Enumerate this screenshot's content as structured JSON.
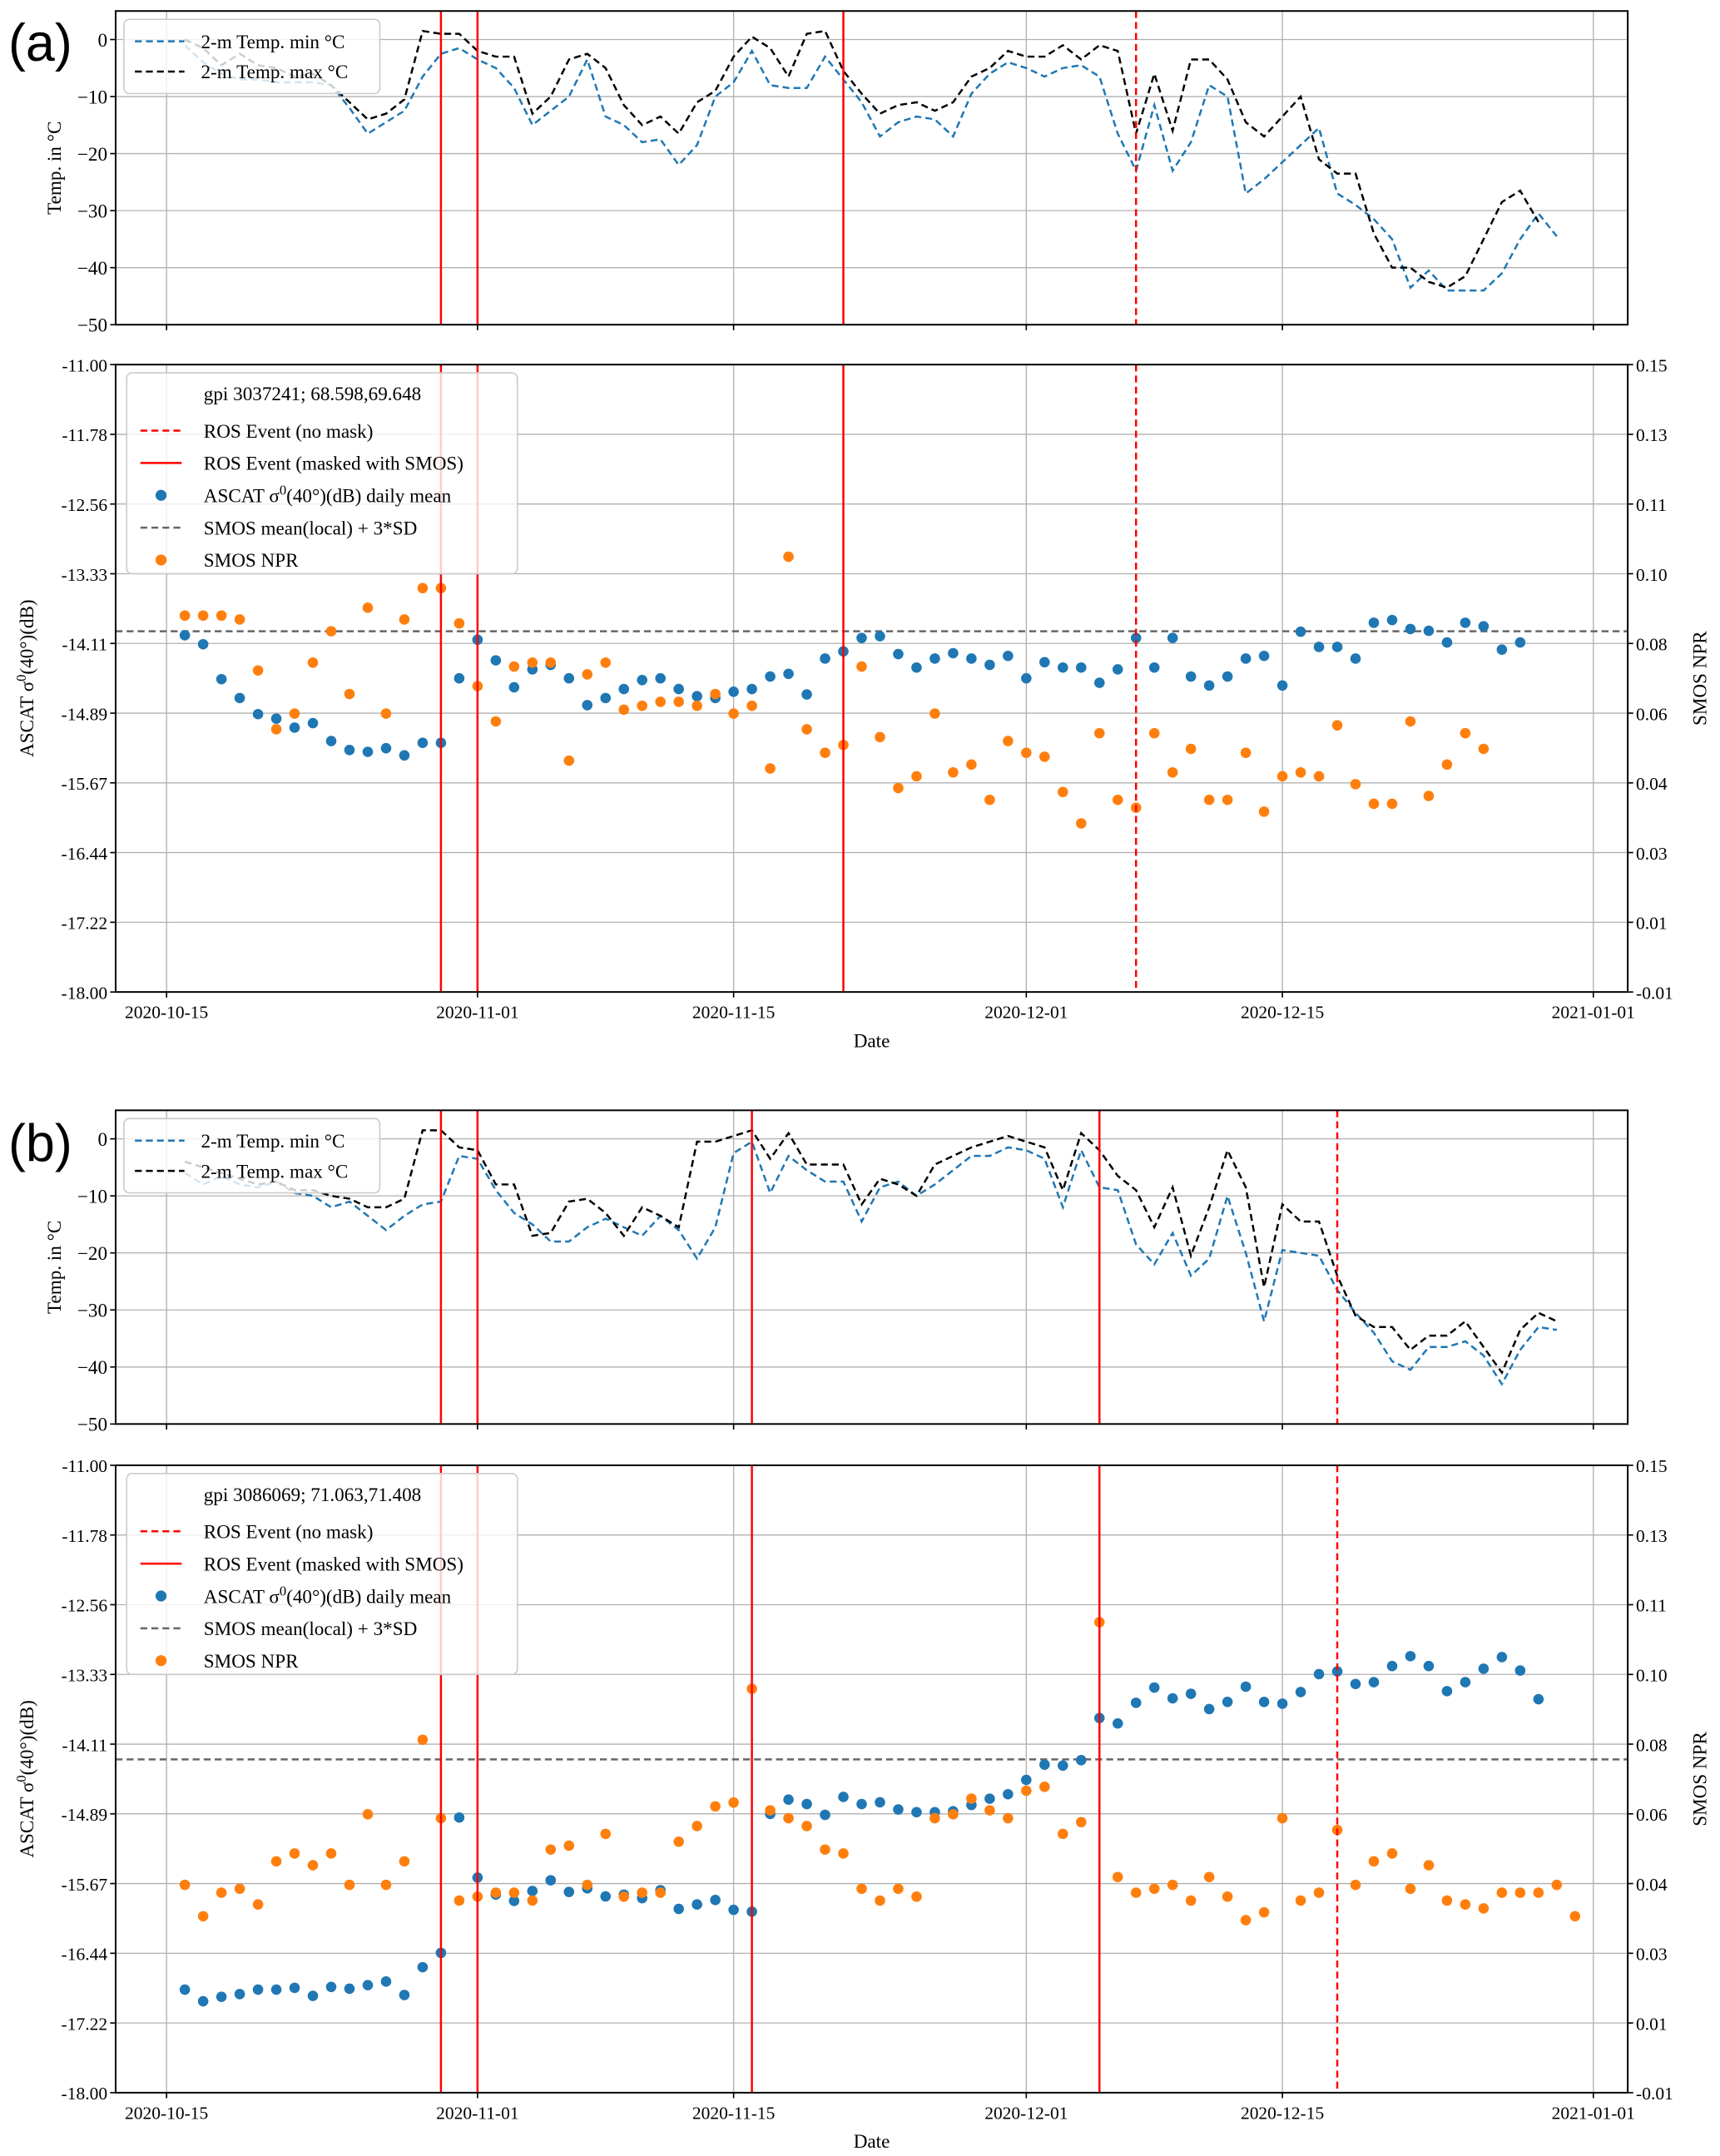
{
  "figure": {
    "panels": [
      {
        "label": "(a)",
        "gpi_label": "gpi 3037241; 68.598,69.648"
      },
      {
        "label": "(b)",
        "gpi_label": "gpi 3086069; 71.063,71.408"
      }
    ]
  },
  "chart_data": [
    {
      "panel": "(a)",
      "subplot": "temperature",
      "type": "line",
      "ylabel": "Temp. in °C",
      "ylim": [
        -50,
        5
      ],
      "yticks": [
        0,
        -10,
        -20,
        -30,
        -40,
        -50
      ],
      "ytick_labels": [
        "0",
        "−10",
        "−20",
        "−30",
        "−40",
        "−50"
      ],
      "xlim": [
        "2020-10-12",
        "2021-01-03"
      ],
      "xticks": [
        "2020-10-15",
        "2020-11-01",
        "2020-11-15",
        "2020-12-01",
        "2020-12-15",
        "2021-01-01"
      ],
      "grid": true,
      "legend": {
        "placement": "top-left",
        "entries": [
          "2-m Temp. min °C",
          "2-m Temp. max °C"
        ]
      },
      "x_start": "2020-10-16",
      "series": [
        {
          "name": "2-m Temp. min °C",
          "color": "#1f77b4",
          "style": "dashed",
          "values": [
            -1,
            -4,
            -6,
            -7,
            -7,
            -7.5,
            -7.5,
            -7.5,
            -8,
            -12,
            -16.5,
            -14.5,
            -12.5,
            -6.5,
            -2.5,
            -1.5,
            -3.5,
            -5,
            -8.5,
            -15,
            -12.5,
            -10,
            -3.5,
            -13.5,
            -15,
            -18,
            -17.5,
            -22,
            -18.5,
            -10,
            -7.5,
            -2,
            -8,
            -8.5,
            -8.5,
            -3,
            -7,
            -11,
            -17,
            -14.5,
            -13.5,
            -14,
            -17,
            -9.5,
            -6,
            -4,
            -5,
            -6.5,
            -5,
            -4.5,
            -6.5,
            -16.5,
            -23,
            -11.5,
            -23,
            -18,
            -8,
            -10,
            -27,
            -24.5,
            -21.5,
            -18.5,
            -15.5,
            -27,
            -29,
            -31.5,
            -35,
            -43.5,
            -40.5,
            -44,
            -44,
            -44,
            -41,
            -35,
            -30.5,
            -34.5
          ]
        },
        {
          "name": "2-m Temp. max °C",
          "color": "#000000",
          "style": "dashed",
          "values": [
            0,
            -1.5,
            -4.5,
            -2.5,
            -4.5,
            -5,
            -6.5,
            -6,
            -8,
            -11,
            -14,
            -13,
            -10.5,
            1.5,
            1,
            1,
            -2,
            -3,
            -3,
            -13,
            -10,
            -3.5,
            -2.5,
            -5,
            -11.5,
            -15,
            -13.5,
            -16.5,
            -11,
            -9,
            -3,
            0.5,
            -1.5,
            -6.5,
            1,
            1.5,
            -5.5,
            -9.5,
            -13,
            -11.5,
            -11,
            -12.5,
            -11,
            -6.5,
            -5,
            -2,
            -3,
            -3,
            -1,
            -3.5,
            -1,
            -2,
            -16.5,
            -6,
            -16,
            -3.5,
            -3.5,
            -7,
            -14.5,
            -17,
            -13.5,
            -10,
            -21,
            -23.5,
            -23.5,
            -34,
            -40,
            -40,
            -42.5,
            -43.5,
            -41.5,
            -35,
            -28.5,
            -26.5,
            -32
          ]
        }
      ],
      "vlines": [
        {
          "date": "2020-10-30",
          "type": "ROS Event (masked with SMOS)"
        },
        {
          "date": "2020-11-01",
          "type": "ROS Event (masked with SMOS)"
        },
        {
          "date": "2020-11-21",
          "type": "ROS Event (masked with SMOS)"
        },
        {
          "date": "2020-12-07",
          "type": "ROS Event (no mask)"
        }
      ]
    },
    {
      "panel": "(a)",
      "subplot": "backscatter",
      "type": "scatter",
      "title": "gpi 3037241; 68.598,69.648",
      "xlabel": "Date",
      "ylabel": "ASCAT σ0(40°)(dB)",
      "ylabel_right": "SMOS NPR",
      "ylim": [
        -18.0,
        -11.0
      ],
      "yticks": [
        "-11.00",
        "-11.78",
        "-12.56",
        "-13.33",
        "-14.11",
        "-14.89",
        "-15.67",
        "-16.44",
        "-17.22",
        "-18.00"
      ],
      "ylim_right": [
        -0.01,
        0.15
      ],
      "yticks_right": [
        "0.15",
        "0.13",
        "0.11",
        "0.10",
        "0.08",
        "0.06",
        "0.04",
        "0.03",
        "0.01",
        "-0.01"
      ],
      "xlim": [
        "2020-10-12",
        "2021-01-03"
      ],
      "xticks": [
        "2020-10-15",
        "2020-11-01",
        "2020-11-15",
        "2020-12-01",
        "2020-12-15",
        "2021-01-01"
      ],
      "grid": true,
      "legend": {
        "placement": "top-left",
        "entries": [
          "ROS Event (no mask)",
          "ROS Event (masked with SMOS)",
          "ASCAT σ0(40°)(dB) daily mean",
          "SMOS mean(local) + 3*SD",
          "SMOS NPR"
        ]
      },
      "threshold_npr": 0.082,
      "x_start": "2020-10-16",
      "series": [
        {
          "name": "ASCAT σ0(40°)(dB) daily mean",
          "color": "#1f77b4",
          "axis": "left",
          "values": [
            -14.02,
            -14.12,
            -14.51,
            -14.72,
            -14.9,
            -14.95,
            -15.05,
            -15.0,
            -15.2,
            -15.3,
            -15.32,
            -15.28,
            -15.36,
            -15.22,
            -15.22,
            -14.5,
            -14.07,
            -14.3,
            -14.6,
            -14.4,
            -14.35,
            -14.5,
            -14.8,
            -14.72,
            -14.62,
            -14.52,
            -14.5,
            -14.62,
            -14.7,
            -14.72,
            -14.65,
            -14.62,
            -14.48,
            -14.45,
            -14.68,
            -14.28,
            -14.2,
            -14.05,
            -14.03,
            -14.23,
            -14.38,
            -14.28,
            -14.22,
            -14.28,
            -14.35,
            -14.25,
            -14.5,
            -14.32,
            -14.38,
            -14.38,
            -14.55,
            -14.4,
            -14.05,
            -14.38,
            -14.05,
            -14.48,
            -14.58,
            -14.48,
            -14.28,
            -14.25,
            -14.58,
            -13.98,
            -14.15,
            -14.15,
            -14.28,
            -13.88,
            -13.85,
            -13.95,
            -13.97,
            -14.1,
            -13.88,
            -13.92,
            -14.18,
            -14.1
          ],
          "note": "daily values approximate, read from scatter"
        },
        {
          "name": "SMOS NPR",
          "color": "#ff7f0e",
          "axis": "right",
          "values": [
            0.086,
            0.086,
            0.086,
            0.085,
            0.072,
            0.057,
            0.061,
            0.074,
            0.082,
            0.066,
            0.088,
            0.061,
            0.085,
            0.093,
            0.093,
            0.084,
            0.068,
            0.059,
            0.073,
            0.074,
            0.074,
            0.049,
            0.071,
            0.074,
            0.062,
            0.063,
            0.064,
            0.064,
            0.063,
            0.066,
            0.061,
            0.063,
            0.047,
            0.101,
            0.057,
            0.051,
            0.053,
            0.073,
            0.055,
            0.042,
            0.045,
            0.061,
            0.046,
            0.048,
            0.039,
            0.054,
            0.051,
            0.05,
            0.041,
            0.033,
            0.056,
            0.039,
            0.037,
            0.056,
            0.046,
            0.052,
            0.039,
            0.039,
            0.051,
            0.036,
            0.045,
            0.046,
            0.045,
            0.058,
            0.043,
            0.038,
            0.038,
            0.059,
            0.04,
            0.048,
            0.056,
            0.052
          ]
        }
      ],
      "vlines": [
        {
          "date": "2020-10-30",
          "type": "ROS Event (masked with SMOS)"
        },
        {
          "date": "2020-11-01",
          "type": "ROS Event (masked with SMOS)"
        },
        {
          "date": "2020-11-21",
          "type": "ROS Event (masked with SMOS)"
        },
        {
          "date": "2020-12-07",
          "type": "ROS Event (no mask)"
        }
      ]
    },
    {
      "panel": "(b)",
      "subplot": "temperature",
      "type": "line",
      "ylabel": "Temp. in °C",
      "ylim": [
        -50,
        5
      ],
      "yticks": [
        0,
        -10,
        -20,
        -30,
        -40,
        -50
      ],
      "ytick_labels": [
        "0",
        "−10",
        "−20",
        "−30",
        "−40",
        "−50"
      ],
      "xlim": [
        "2020-10-12",
        "2021-01-03"
      ],
      "xticks": [
        "2020-10-15",
        "2020-11-01",
        "2020-11-15",
        "2020-12-01",
        "2020-12-15",
        "2021-01-01"
      ],
      "grid": true,
      "legend": {
        "placement": "top-left",
        "entries": [
          "2-m Temp. min °C",
          "2-m Temp. max °C"
        ]
      },
      "x_start": "2020-10-16",
      "series": [
        {
          "name": "2-m Temp. min °C",
          "color": "#1f77b4",
          "style": "dashed",
          "values": [
            -6,
            -8,
            -6.5,
            -8,
            -8.5,
            -7.5,
            -9.5,
            -10,
            -12,
            -11,
            -13.5,
            -16,
            -13.5,
            -11.5,
            -11,
            -3,
            -3.5,
            -9,
            -13,
            -15,
            -18,
            -18,
            -15.5,
            -14,
            -15.5,
            -17,
            -13.5,
            -16,
            -21,
            -15.5,
            -2.5,
            -0.5,
            -9.5,
            -3,
            -5.5,
            -7.5,
            -7.5,
            -14.5,
            -8.5,
            -7.5,
            -10,
            -8,
            -5.5,
            -3,
            -3,
            -1.5,
            -2,
            -3.5,
            -12,
            -2,
            -8.5,
            -9,
            -18.5,
            -22,
            -16.5,
            -24,
            -21,
            -10,
            -20,
            -32,
            -19.5,
            -20,
            -20.5,
            -26.5,
            -30.5,
            -34,
            -39,
            -40.5,
            -36.5,
            -36.5,
            -35.5,
            -38,
            -43,
            -37,
            -33,
            -33.5
          ]
        },
        {
          "name": "2-m Temp. max °C",
          "color": "#000000",
          "style": "dashed",
          "values": [
            -4,
            -5,
            -6,
            -7,
            -8,
            -7.5,
            -9,
            -9,
            -10,
            -10.5,
            -12,
            -12,
            -10.5,
            1.5,
            1.5,
            -1.5,
            -2,
            -8,
            -8,
            -17,
            -16.5,
            -11,
            -10.5,
            -13,
            -17,
            -12,
            -13.5,
            -15.5,
            -0.5,
            -0.5,
            0.5,
            1.5,
            -3.5,
            1,
            -4.5,
            -4.5,
            -4.5,
            -11.5,
            -7,
            -8,
            -10,
            -4.5,
            -3,
            -1.5,
            -0.5,
            0.5,
            -0.5,
            -1.5,
            -9,
            1,
            -2,
            -6.5,
            -9,
            -15.5,
            -8.5,
            -20.5,
            -12,
            -2,
            -8.5,
            -26,
            -11.5,
            -14.5,
            -14.5,
            -24,
            -31,
            -33,
            -33,
            -37,
            -34.5,
            -34.5,
            -32,
            -36.5,
            -41,
            -33.5,
            -30.5,
            -32
          ]
        }
      ],
      "vlines": [
        {
          "date": "2020-10-30",
          "type": "ROS Event (masked with SMOS)"
        },
        {
          "date": "2020-11-01",
          "type": "ROS Event (masked with SMOS)"
        },
        {
          "date": "2020-11-16",
          "type": "ROS Event (masked with SMOS)"
        },
        {
          "date": "2020-12-05",
          "type": "ROS Event (masked with SMOS)"
        },
        {
          "date": "2020-12-18",
          "type": "ROS Event (no mask)"
        }
      ]
    },
    {
      "panel": "(b)",
      "subplot": "backscatter",
      "type": "scatter",
      "title": "gpi 3086069; 71.063,71.408",
      "xlabel": "Date",
      "ylabel": "ASCAT σ0(40°)(dB)",
      "ylabel_right": "SMOS NPR",
      "ylim": [
        -18.0,
        -11.0
      ],
      "yticks": [
        "-11.00",
        "-11.78",
        "-12.56",
        "-13.33",
        "-14.11",
        "-14.89",
        "-15.67",
        "-16.44",
        "-17.22",
        "-18.00"
      ],
      "ylim_right": [
        -0.01,
        0.15
      ],
      "yticks_right": [
        "0.15",
        "0.13",
        "0.11",
        "0.10",
        "0.08",
        "0.06",
        "0.04",
        "0.03",
        "0.01",
        "-0.01"
      ],
      "xlim": [
        "2020-10-12",
        "2021-01-03"
      ],
      "xticks": [
        "2020-10-15",
        "2020-11-01",
        "2020-11-15",
        "2020-12-01",
        "2020-12-15",
        "2021-01-01"
      ],
      "grid": true,
      "legend": {
        "placement": "top-left",
        "entries": [
          "ROS Event (no mask)",
          "ROS Event (masked with SMOS)",
          "ASCAT σ0(40°)(dB) daily mean",
          "SMOS mean(local) + 3*SD",
          "SMOS NPR"
        ]
      },
      "threshold_npr": 0.075,
      "x_start": "2020-10-16",
      "series": [
        {
          "name": "ASCAT σ0(40°)(dB) daily mean",
          "color": "#1f77b4",
          "axis": "left",
          "values": [
            -16.85,
            -16.98,
            -16.93,
            -16.9,
            -16.85,
            -16.85,
            -16.83,
            -16.92,
            -16.82,
            -16.84,
            -16.8,
            -16.76,
            -16.91,
            -16.6,
            -16.44,
            -14.93,
            -15.6,
            -15.79,
            -15.86,
            -15.75,
            -15.63,
            -15.76,
            -15.72,
            -15.81,
            -15.79,
            -15.83,
            -15.74,
            -15.95,
            -15.9,
            -15.85,
            -15.96,
            -15.98,
            -14.89,
            -14.73,
            -14.78,
            -14.9,
            -14.7,
            -14.78,
            -14.76,
            -14.84,
            -14.87,
            -14.87,
            -14.86,
            -14.79,
            -14.72,
            -14.67,
            -14.51,
            -14.34,
            -14.35,
            -14.29,
            -13.82,
            -13.88,
            -13.65,
            -13.48,
            -13.6,
            -13.55,
            -13.72,
            -13.64,
            -13.47,
            -13.64,
            -13.66,
            -13.53,
            -13.33,
            -13.3,
            -13.44,
            -13.42,
            -13.24,
            -13.13,
            -13.24,
            -13.52,
            -13.42,
            -13.27,
            -13.14,
            -13.29,
            -13.61
          ],
          "note": "daily values approximate, read from scatter"
        },
        {
          "name": "SMOS NPR",
          "color": "#ff7f0e",
          "axis": "right",
          "values": [
            0.043,
            0.035,
            0.041,
            0.042,
            0.038,
            0.049,
            0.051,
            0.048,
            0.051,
            0.043,
            0.061,
            0.043,
            0.049,
            0.08,
            0.06,
            0.039,
            0.04,
            0.041,
            0.041,
            0.039,
            0.052,
            0.053,
            0.043,
            0.056,
            0.04,
            0.041,
            0.041,
            0.054,
            0.058,
            0.063,
            0.064,
            0.093,
            0.062,
            0.06,
            0.058,
            0.052,
            0.051,
            0.042,
            0.039,
            0.042,
            0.04,
            0.06,
            0.061,
            0.065,
            0.062,
            0.06,
            0.067,
            0.068,
            0.056,
            0.059,
            0.11,
            0.045,
            0.041,
            0.042,
            0.043,
            0.039,
            0.045,
            0.04,
            0.034,
            0.036,
            0.06,
            0.039,
            0.041,
            0.057,
            0.043,
            0.049,
            0.051,
            0.042,
            0.048,
            0.039,
            0.038,
            0.037,
            0.041,
            0.041,
            0.041,
            0.043,
            0.035
          ]
        }
      ],
      "vlines": [
        {
          "date": "2020-10-30",
          "type": "ROS Event (masked with SMOS)"
        },
        {
          "date": "2020-11-01",
          "type": "ROS Event (masked with SMOS)"
        },
        {
          "date": "2020-11-16",
          "type": "ROS Event (masked with SMOS)"
        },
        {
          "date": "2020-12-05",
          "type": "ROS Event (masked with SMOS)"
        },
        {
          "date": "2020-12-18",
          "type": "ROS Event (no mask)"
        }
      ]
    }
  ]
}
